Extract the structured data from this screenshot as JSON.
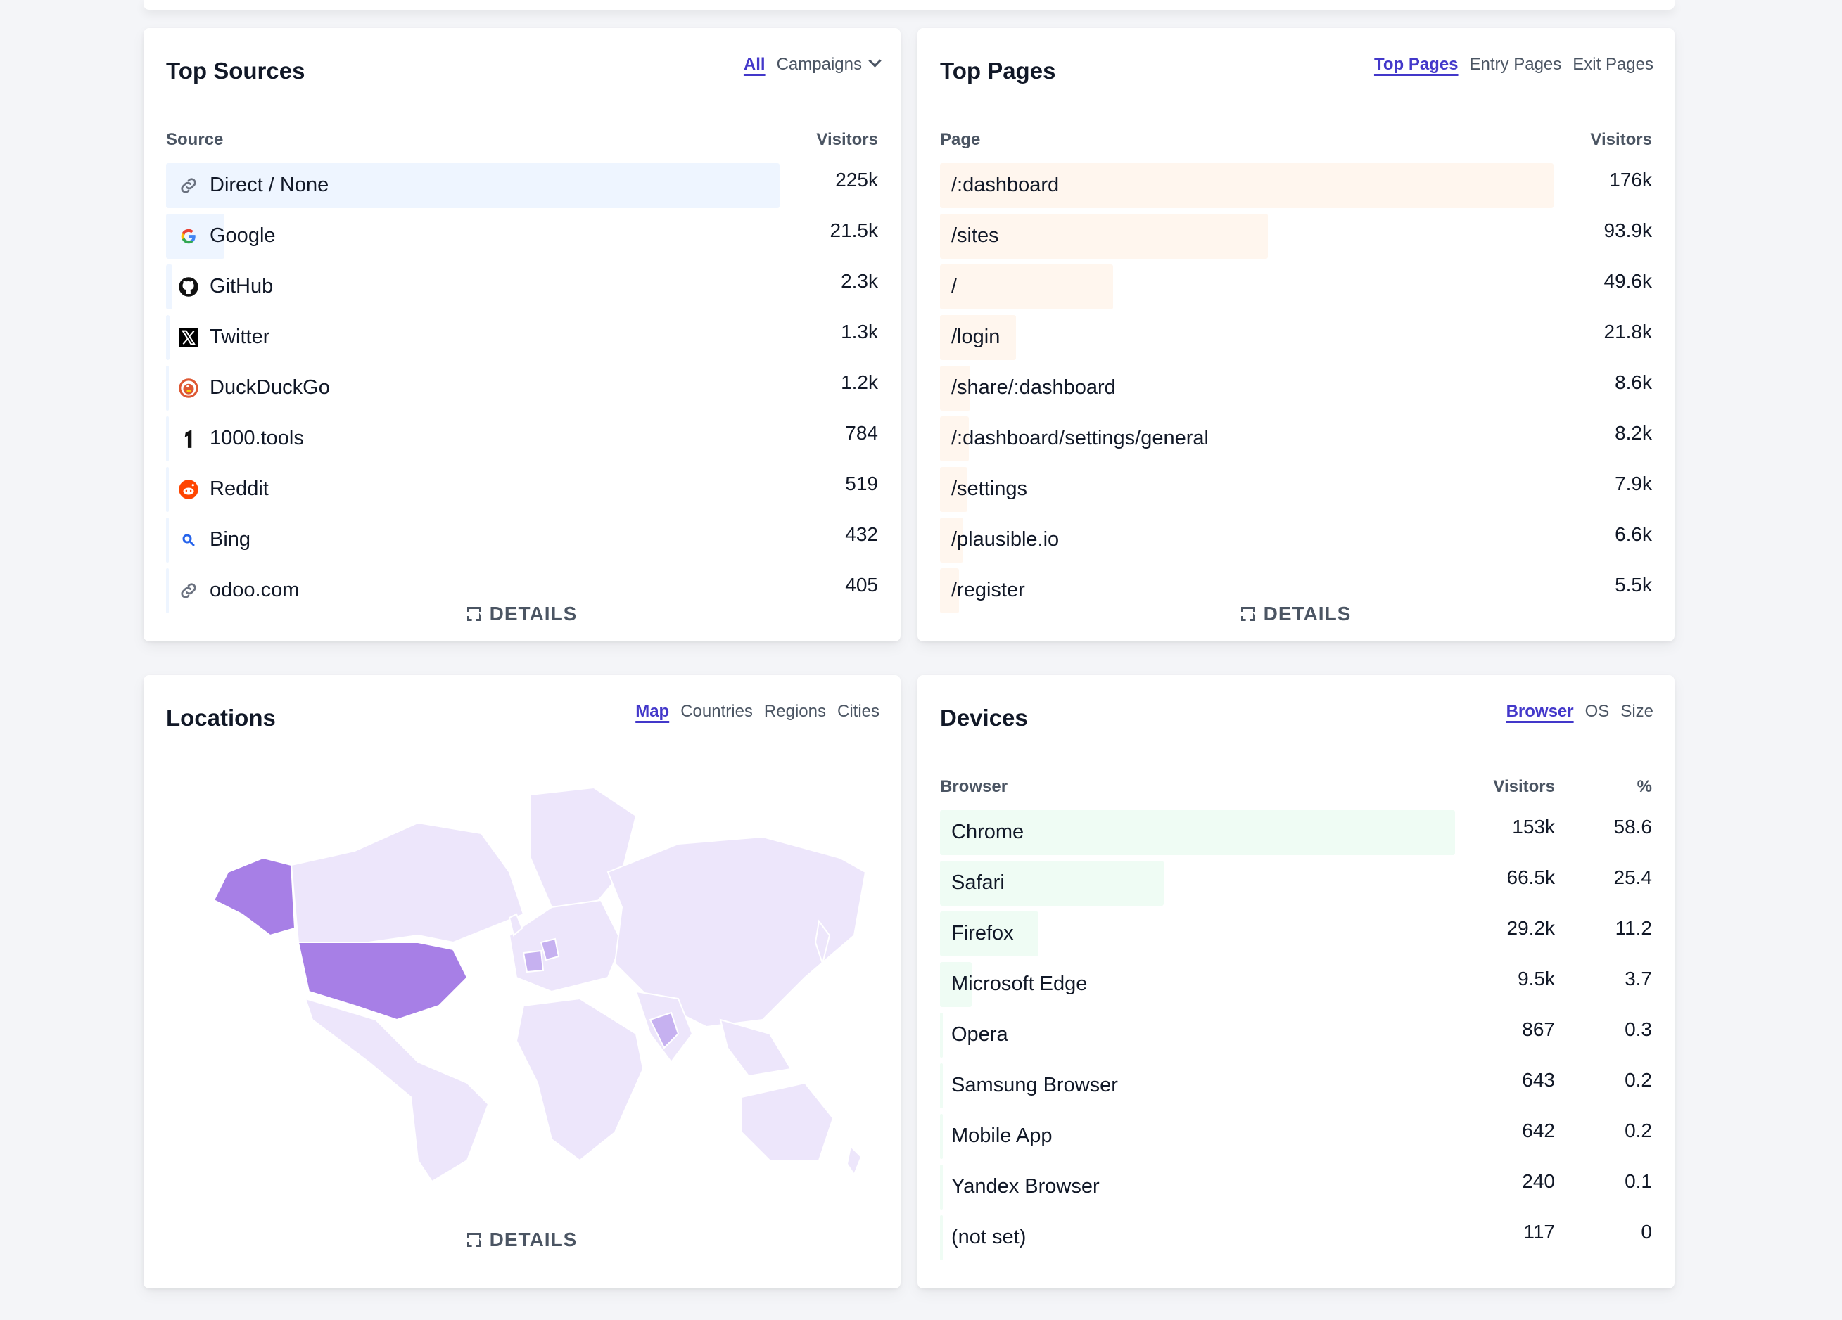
{
  "colors": {
    "sources_bar": "#eef5ff",
    "pages_bar": "#fff6ee",
    "devices_bar": "#effcf4",
    "map_base": "#ede6fb",
    "map_high": "#a77fe6",
    "accent": "#4338ca"
  },
  "sources": {
    "title": "Top Sources",
    "tabs": [
      {
        "label": "All",
        "active": true
      },
      {
        "label": "Campaigns",
        "active": false
      }
    ],
    "col_label": "Source",
    "col_value": "Visitors",
    "rows": [
      {
        "label": "Direct / None",
        "value": "225k",
        "fraction": 1.0,
        "icon": "link-icon"
      },
      {
        "label": "Google",
        "value": "21.5k",
        "fraction": 0.095,
        "icon": "google-icon"
      },
      {
        "label": "GitHub",
        "value": "2.3k",
        "fraction": 0.01,
        "icon": "github-icon"
      },
      {
        "label": "Twitter",
        "value": "1.3k",
        "fraction": 0.006,
        "icon": "x-twitter-icon"
      },
      {
        "label": "DuckDuckGo",
        "value": "1.2k",
        "fraction": 0.005,
        "icon": "duckduckgo-icon"
      },
      {
        "label": "1000.tools",
        "value": "784",
        "fraction": 0.004,
        "icon": "tools-icon"
      },
      {
        "label": "Reddit",
        "value": "519",
        "fraction": 0.003,
        "icon": "reddit-icon"
      },
      {
        "label": "Bing",
        "value": "432",
        "fraction": 0.002,
        "icon": "bing-search-icon"
      },
      {
        "label": "odoo.com",
        "value": "405",
        "fraction": 0.002,
        "icon": "link-icon"
      }
    ],
    "details": "DETAILS"
  },
  "pages": {
    "title": "Top Pages",
    "tabs": [
      {
        "label": "Top Pages",
        "active": true
      },
      {
        "label": "Entry Pages",
        "active": false
      },
      {
        "label": "Exit Pages",
        "active": false
      }
    ],
    "col_label": "Page",
    "col_value": "Visitors",
    "rows": [
      {
        "label": "/:dashboard",
        "value": "176k",
        "fraction": 1.0
      },
      {
        "label": "/sites",
        "value": "93.9k",
        "fraction": 0.534
      },
      {
        "label": "/",
        "value": "49.6k",
        "fraction": 0.282
      },
      {
        "label": "/login",
        "value": "21.8k",
        "fraction": 0.124
      },
      {
        "label": "/share/:dashboard",
        "value": "8.6k",
        "fraction": 0.049
      },
      {
        "label": "/:dashboard/settings/general",
        "value": "8.2k",
        "fraction": 0.047
      },
      {
        "label": "/settings",
        "value": "7.9k",
        "fraction": 0.045
      },
      {
        "label": "/plausible.io",
        "value": "6.6k",
        "fraction": 0.038
      },
      {
        "label": "/register",
        "value": "5.5k",
        "fraction": 0.031
      }
    ],
    "details": "DETAILS"
  },
  "locations": {
    "title": "Locations",
    "tabs": [
      {
        "label": "Map",
        "active": true
      },
      {
        "label": "Countries",
        "active": false
      },
      {
        "label": "Regions",
        "active": false
      },
      {
        "label": "Cities",
        "active": false
      }
    ],
    "details": "DETAILS"
  },
  "devices": {
    "title": "Devices",
    "tabs": [
      {
        "label": "Browser",
        "active": true
      },
      {
        "label": "OS",
        "active": false
      },
      {
        "label": "Size",
        "active": false
      }
    ],
    "col_label": "Browser",
    "col_value": "Visitors",
    "col_pct": "%",
    "rows": [
      {
        "label": "Chrome",
        "value": "153k",
        "pct": "58.6",
        "fraction": 1.0
      },
      {
        "label": "Safari",
        "value": "66.5k",
        "pct": "25.4",
        "fraction": 0.435
      },
      {
        "label": "Firefox",
        "value": "29.2k",
        "pct": "11.2",
        "fraction": 0.191
      },
      {
        "label": "Microsoft Edge",
        "value": "9.5k",
        "pct": "3.7",
        "fraction": 0.062
      },
      {
        "label": "Opera",
        "value": "867",
        "pct": "0.3",
        "fraction": 0.006
      },
      {
        "label": "Samsung Browser",
        "value": "643",
        "pct": "0.2",
        "fraction": 0.004
      },
      {
        "label": "Mobile App",
        "value": "642",
        "pct": "0.2",
        "fraction": 0.004
      },
      {
        "label": "Yandex Browser",
        "value": "240",
        "pct": "0.1",
        "fraction": 0.002
      },
      {
        "label": "(not set)",
        "value": "117",
        "pct": "0",
        "fraction": 0.001
      }
    ]
  }
}
